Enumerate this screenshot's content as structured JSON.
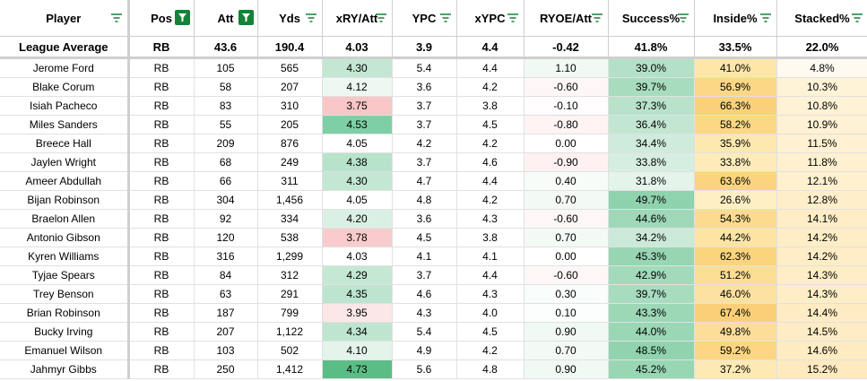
{
  "headers": [
    "Player",
    "Pos",
    "Att",
    "Yds",
    "xRY/Att",
    "YPC",
    "xYPC",
    "RYOE/Att",
    "Success%",
    "Inside%",
    "Stacked%"
  ],
  "league_average": [
    "League Average",
    "RB",
    "43.6",
    "190.4",
    "4.03",
    "3.9",
    "4.4",
    "-0.42",
    "41.8%",
    "33.5%",
    "22.0%"
  ],
  "rows": [
    [
      "Jerome Ford",
      "RB",
      "105",
      "565",
      "4.30",
      "5.4",
      "4.4",
      "1.10",
      "39.0%",
      "41.0%",
      "4.8%"
    ],
    [
      "Blake Corum",
      "RB",
      "58",
      "207",
      "4.12",
      "3.6",
      "4.2",
      "-0.60",
      "39.7%",
      "56.9%",
      "10.3%"
    ],
    [
      "Isiah Pacheco",
      "RB",
      "83",
      "310",
      "3.75",
      "3.7",
      "3.8",
      "-0.10",
      "37.3%",
      "66.3%",
      "10.8%"
    ],
    [
      "Miles Sanders",
      "RB",
      "55",
      "205",
      "4.53",
      "3.7",
      "4.5",
      "-0.80",
      "36.4%",
      "58.2%",
      "10.9%"
    ],
    [
      "Breece Hall",
      "RB",
      "209",
      "876",
      "4.05",
      "4.2",
      "4.2",
      "0.00",
      "34.4%",
      "35.9%",
      "11.5%"
    ],
    [
      "Jaylen Wright",
      "RB",
      "68",
      "249",
      "4.38",
      "3.7",
      "4.6",
      "-0.90",
      "33.8%",
      "33.8%",
      "11.8%"
    ],
    [
      "Ameer Abdullah",
      "RB",
      "66",
      "311",
      "4.30",
      "4.7",
      "4.4",
      "0.40",
      "31.8%",
      "63.6%",
      "12.1%"
    ],
    [
      "Bijan Robinson",
      "RB",
      "304",
      "1,456",
      "4.05",
      "4.8",
      "4.2",
      "0.70",
      "49.7%",
      "26.6%",
      "12.8%"
    ],
    [
      "Braelon Allen",
      "RB",
      "92",
      "334",
      "4.20",
      "3.6",
      "4.3",
      "-0.60",
      "44.6%",
      "54.3%",
      "14.1%"
    ],
    [
      "Antonio Gibson",
      "RB",
      "120",
      "538",
      "3.78",
      "4.5",
      "3.8",
      "0.70",
      "34.2%",
      "44.2%",
      "14.2%"
    ],
    [
      "Kyren Williams",
      "RB",
      "316",
      "1,299",
      "4.03",
      "4.1",
      "4.1",
      "0.00",
      "45.3%",
      "62.3%",
      "14.2%"
    ],
    [
      "Tyjae Spears",
      "RB",
      "84",
      "312",
      "4.29",
      "3.7",
      "4.4",
      "-0.60",
      "42.9%",
      "51.2%",
      "14.3%"
    ],
    [
      "Trey Benson",
      "RB",
      "63",
      "291",
      "4.35",
      "4.6",
      "4.3",
      "0.30",
      "39.7%",
      "46.0%",
      "14.3%"
    ],
    [
      "Brian Robinson",
      "RB",
      "187",
      "799",
      "3.95",
      "4.3",
      "4.0",
      "0.10",
      "43.3%",
      "67.4%",
      "14.4%"
    ],
    [
      "Bucky Irving",
      "RB",
      "207",
      "1,122",
      "4.34",
      "5.4",
      "4.5",
      "0.90",
      "44.0%",
      "49.8%",
      "14.5%"
    ],
    [
      "Emanuel Wilson",
      "RB",
      "103",
      "502",
      "4.10",
      "4.9",
      "4.2",
      "0.70",
      "48.5%",
      "59.2%",
      "14.6%"
    ],
    [
      "Jahmyr Gibbs",
      "RB",
      "250",
      "1,412",
      "4.73",
      "5.6",
      "4.8",
      "0.90",
      "45.2%",
      "37.2%",
      "15.2%"
    ]
  ],
  "cell_colors": {
    "xry": [
      "#c3e7d3",
      "#eef8f2",
      "#f8c6c6",
      "#7fcfa6",
      "#ffffff",
      "#b8e3cb",
      "#c3e7d3",
      "#ffffff",
      "#dbf0e4",
      "#f8cccc",
      "#ffffff",
      "#c5e8d4",
      "#bce4ce",
      "#fbe7e7",
      "#bfe5d0",
      "#e4f4eb",
      "#5bbd86"
    ],
    "ryoe": [
      "#f1f9f4",
      "#fff7f7",
      "#fffdfd",
      "#fff3f3",
      "#ffffff",
      "#fff1f1",
      "#f7fcf9",
      "#f3faf6",
      "#fff7f7",
      "#f3faf6",
      "#ffffff",
      "#fff7f7",
      "#f9fdfb",
      "#fcfefd",
      "#f1f9f4",
      "#f3faf6",
      "#f1f9f4"
    ],
    "success": [
      "#b3e0c6",
      "#a8dcbf",
      "#b8e2ca",
      "#c3e6d2",
      "#cfebdb",
      "#d6eee0",
      "#e4f4ea",
      "#8fd2ae",
      "#9ed8b8",
      "#cbe9d8",
      "#98d5b3",
      "#a2dabb",
      "#a8dcbf",
      "#9cd7b6",
      "#9ad7b5",
      "#91d3af",
      "#99d6b4"
    ],
    "inside": [
      "#fde6a8",
      "#fcd886",
      "#fad17a",
      "#fcd784",
      "#fde8b0",
      "#fdebba",
      "#fbd47d",
      "#feefc4",
      "#fcdb8f",
      "#fde4a3",
      "#fbd47e",
      "#fcdd94",
      "#fde1a0",
      "#facf77",
      "#fdde98",
      "#fcd682",
      "#fde9b3"
    ],
    "stacked": [
      "#fffaf0",
      "#fff3d7",
      "#fff2d5",
      "#fff2d4",
      "#fff1d2",
      "#fff0cf",
      "#fff0ce",
      "#ffeeca",
      "#ffedc6",
      "#ffedc6",
      "#ffedc6",
      "#ffedc5",
      "#ffedc5",
      "#ffecc4",
      "#ffecc4",
      "#ffecc3",
      "#ffeac0"
    ]
  },
  "icons": {
    "filter": "filter-icon",
    "filter_active": "filter-active-icon"
  },
  "accent_color": "#188038"
}
